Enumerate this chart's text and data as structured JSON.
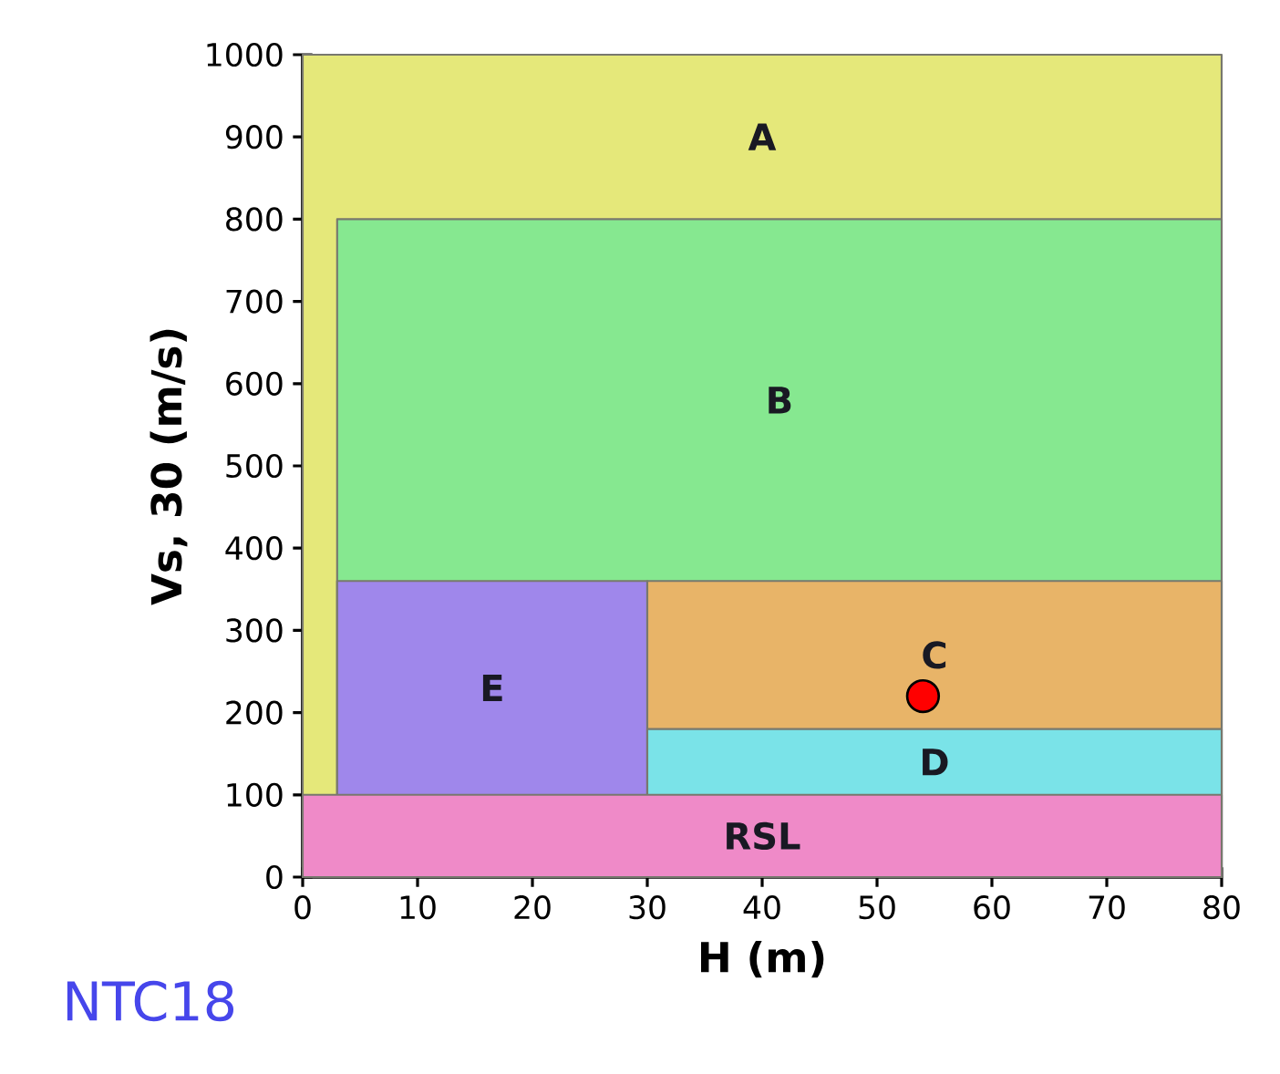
{
  "chart_data": {
    "type": "area",
    "xlabel": "H (m)",
    "ylabel": "Vs, 30 (m/s)",
    "xlim": [
      0,
      80
    ],
    "ylim": [
      0,
      1000
    ],
    "xticks": [
      0,
      10,
      20,
      30,
      40,
      50,
      60,
      70,
      80
    ],
    "yticks": [
      0,
      100,
      200,
      300,
      400,
      500,
      600,
      700,
      800,
      900,
      1000
    ],
    "annotations": [
      "NTC18"
    ],
    "series": [
      {
        "name": "A",
        "color": "#e5e87a",
        "x": [
          0,
          80
        ],
        "values": [
          1000,
          1000
        ]
      },
      {
        "name": "B",
        "color": "#86e890",
        "x": [
          3,
          80
        ],
        "values": [
          800,
          800
        ]
      },
      {
        "name": "E",
        "color": "#9f87eb",
        "x": [
          3,
          30
        ],
        "values": [
          360,
          360
        ]
      },
      {
        "name": "C",
        "color": "#e8b468",
        "x": [
          30,
          80
        ],
        "values": [
          360,
          360
        ]
      },
      {
        "name": "D",
        "color": "#7ae3e8",
        "x": [
          30,
          80
        ],
        "values": [
          180,
          180
        ]
      },
      {
        "name": "RSL",
        "color": "#ef8ac8",
        "x": [
          0,
          80
        ],
        "values": [
          100,
          100
        ]
      },
      {
        "type": "scatter",
        "color": "#ff0000",
        "marker": "circle",
        "x": [
          54
        ],
        "values": [
          220
        ]
      }
    ]
  }
}
